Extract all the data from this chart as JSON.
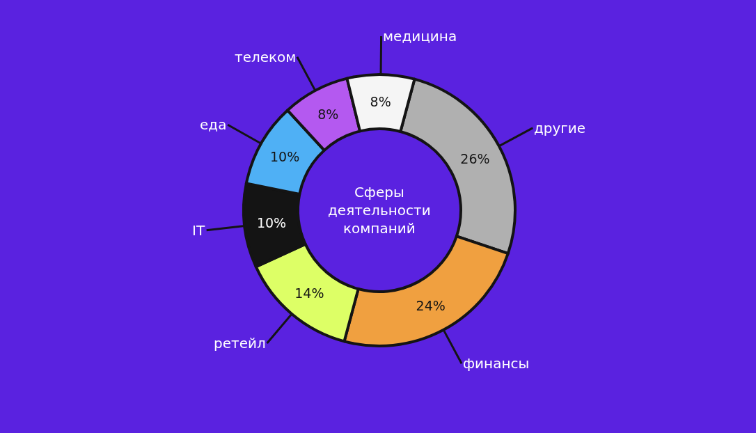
{
  "chart_data": {
    "type": "donut",
    "title": "Сферы\nдеятельности\nкомпаний",
    "categories": [
      "другие",
      "финансы",
      "ретейл",
      "IT",
      "еда",
      "телеком",
      "медицина"
    ],
    "values": [
      26,
      24,
      14,
      10,
      10,
      8,
      8
    ],
    "value_labels": [
      "26%",
      "24%",
      "14%",
      "10%",
      "10%",
      "8%",
      "8%"
    ],
    "colors": [
      "#b0b0b0",
      "#f0a040",
      "#ddff66",
      "#141414",
      "#4fb0f5",
      "#b459f0",
      "#f5f5f5"
    ],
    "legend": false
  }
}
